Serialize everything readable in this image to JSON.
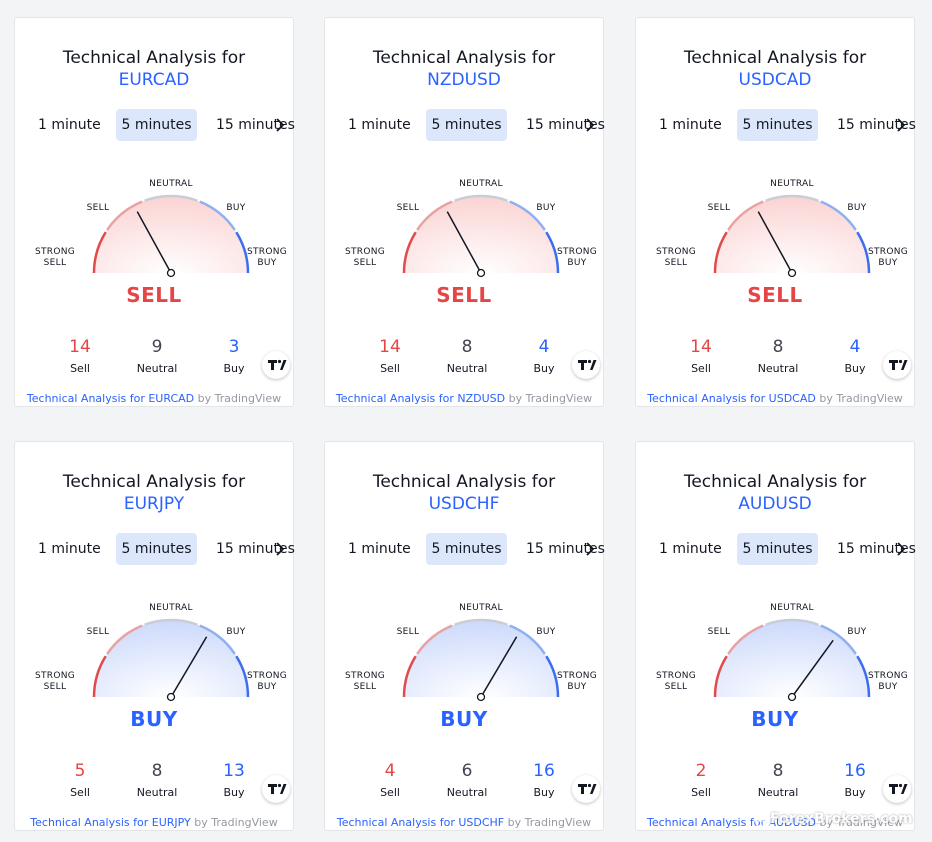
{
  "labels": {
    "title_prefix": "Technical Analysis for",
    "tabs": [
      "1 minute",
      "5 minutes",
      "15 minutes"
    ],
    "gauge": {
      "strong_sell": "STRONG SELL",
      "sell": "SELL",
      "neutral": "NEUTRAL",
      "buy": "BUY",
      "strong_buy": "STRONG BUY"
    },
    "count_labels": {
      "sell": "Sell",
      "neutral": "Neutral",
      "buy": "Buy"
    },
    "footer_prefix": "Technical Analysis for",
    "footer_by": "by TradingView"
  },
  "colors": {
    "sell": "#e64545",
    "buy": "#2962ff",
    "neutral": "#434651",
    "link": "#2962ff"
  },
  "icons": {
    "next": "chevron-right-icon",
    "logo": "tradingview-logo-icon"
  },
  "watermark": "ForexBrokers.com",
  "widgets": [
    {
      "symbol": "EURCAD",
      "verdict": "SELL",
      "sell": "14",
      "neutral": "9",
      "buy": "3",
      "needle": 0.34
    },
    {
      "symbol": "NZDUSD",
      "verdict": "SELL",
      "sell": "14",
      "neutral": "8",
      "buy": "4",
      "needle": 0.34
    },
    {
      "symbol": "USDCAD",
      "verdict": "SELL",
      "sell": "14",
      "neutral": "8",
      "buy": "4",
      "needle": 0.34
    },
    {
      "symbol": "EURJPY",
      "verdict": "BUY",
      "sell": "5",
      "neutral": "8",
      "buy": "13",
      "needle": 0.67
    },
    {
      "symbol": "USDCHF",
      "verdict": "BUY",
      "sell": "4",
      "neutral": "6",
      "buy": "16",
      "needle": 0.67
    },
    {
      "symbol": "AUDUSD",
      "verdict": "BUY",
      "sell": "2",
      "neutral": "8",
      "buy": "16",
      "needle": 0.7
    }
  ]
}
